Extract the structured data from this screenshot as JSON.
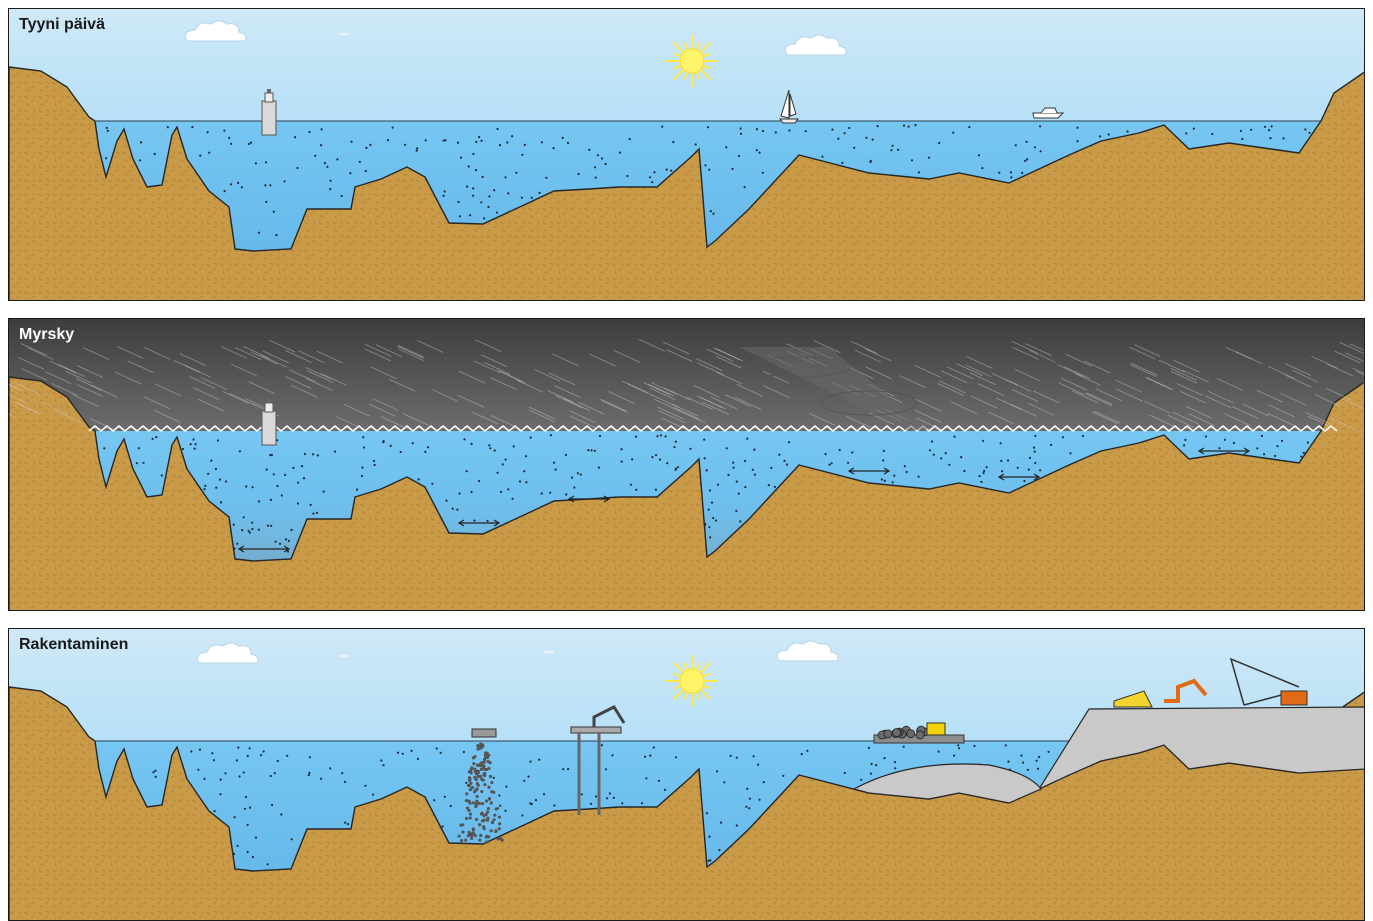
{
  "panels": [
    {
      "id": "calm",
      "title": "Tyyni päivä",
      "sky": [
        "#cfe9f8",
        "#8fd0f4"
      ],
      "sun": true,
      "clouds": 2
    },
    {
      "id": "storm",
      "title": "Myrsky",
      "sky": [
        "#3d3d3d",
        "#b9b9b9"
      ],
      "sun": false,
      "clouds": 0
    },
    {
      "id": "construction",
      "title": "Rakentaminen",
      "sky": [
        "#cfe9f8",
        "#8fd0f4"
      ],
      "sun": true,
      "clouds": 2
    }
  ],
  "colors": {
    "water": "#77c6f2",
    "water_deep": "#5fb4e6",
    "seabed": "#c99a47",
    "seabed_dark": "#a97a30",
    "sediment_cloud": "#8a8a8a",
    "fill_material": "#c9c9c9",
    "sun": "#fff46a",
    "outline": "#262626"
  },
  "icons": [
    "ship-icon",
    "sailboat-icon",
    "motorboat-icon",
    "sun-icon",
    "cloud-icon",
    "bird-icon",
    "excavator-icon",
    "dump-truck-icon",
    "crane-icon",
    "barge-icon",
    "pontoon-icon",
    "bulldozer-icon"
  ]
}
